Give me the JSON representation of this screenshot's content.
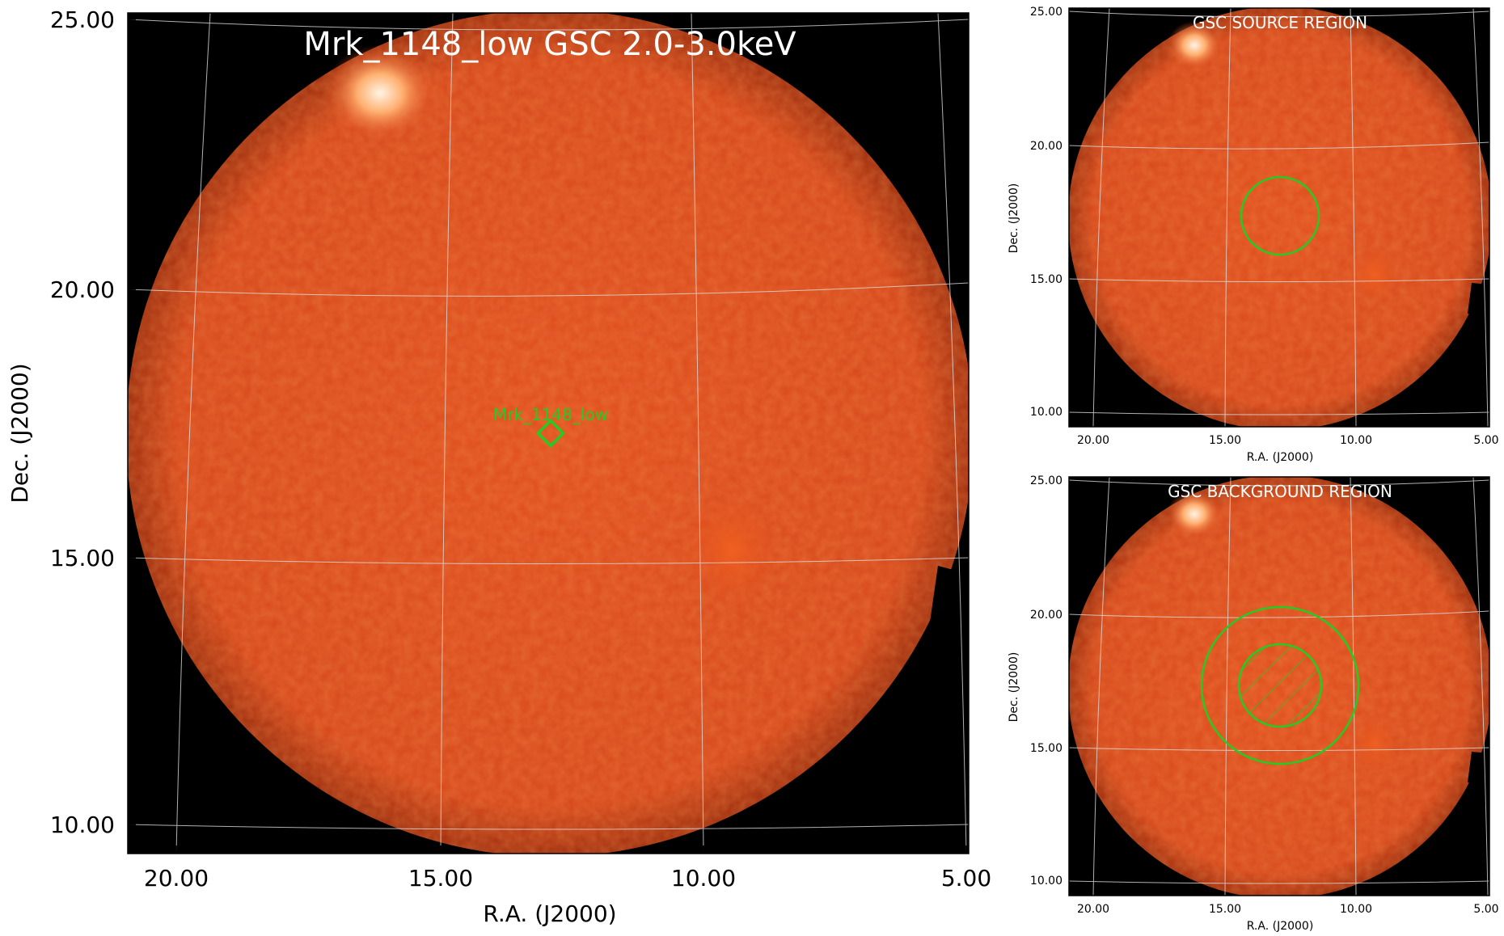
{
  "main": {
    "title": "Mrk_1148_low GSC 2.0-3.0keV",
    "source_label": "Mrk_1148_low",
    "xlabel": "R.A. (J2000)",
    "ylabel": "Dec. (J2000)",
    "x_ticks": [
      "20.00",
      "15.00",
      "10.00",
      "5.00"
    ],
    "y_ticks": [
      "25.00",
      "20.00",
      "15.00",
      "10.00"
    ]
  },
  "panel_source": {
    "title": "GSC SOURCE REGION",
    "xlabel": "R.A. (J2000)",
    "ylabel": "Dec. (J2000)",
    "x_ticks": [
      "20.00",
      "15.00",
      "10.00",
      "5.00"
    ],
    "y_ticks": [
      "25.00",
      "20.00",
      "15.00",
      "10.00"
    ]
  },
  "panel_background": {
    "title": "GSC BACKGROUND REGION",
    "xlabel": "R.A. (J2000)",
    "ylabel": "Dec. (J2000)",
    "x_ticks": [
      "20.00",
      "15.00",
      "10.00",
      "5.00"
    ],
    "y_ticks": [
      "25.00",
      "20.00",
      "15.00",
      "10.00"
    ]
  },
  "colors": {
    "sky_background": "#000000",
    "map": "#d6461a",
    "map_bright": "#fff2e0",
    "region": "#22cc22",
    "grid": "#dddddd"
  }
}
